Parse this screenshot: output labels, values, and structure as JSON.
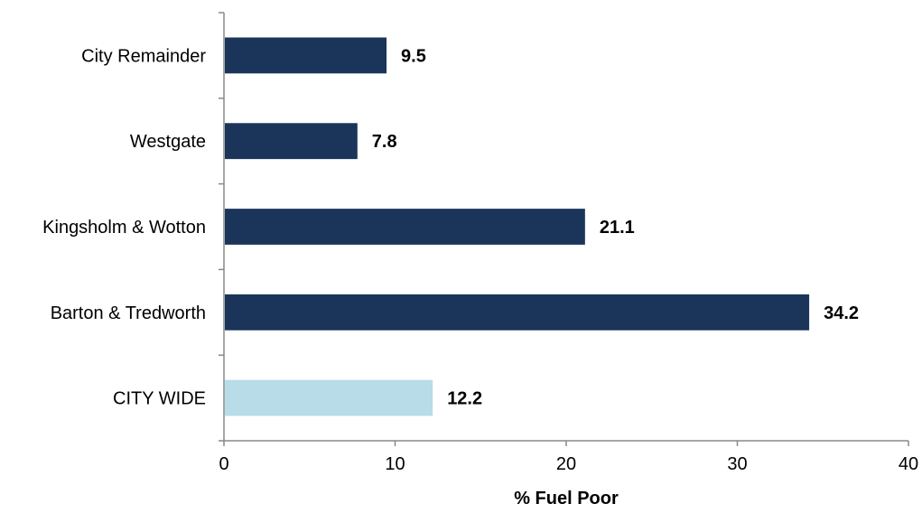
{
  "chart_data": {
    "type": "bar",
    "orientation": "horizontal",
    "categories": [
      "City Remainder",
      "Westgate",
      "Kingsholm & Wotton",
      "Barton & Tredworth",
      "CITY WIDE"
    ],
    "values": [
      9.5,
      7.8,
      21.1,
      34.2,
      12.2
    ],
    "value_labels": [
      "9.5",
      "7.8",
      "21.1",
      "34.2",
      "12.2"
    ],
    "bar_colors": [
      "#1b355a",
      "#1b355a",
      "#1b355a",
      "#1b355a",
      "#b8dce8"
    ],
    "xlabel": "% Fuel Poor",
    "ylabel": "",
    "xlim": [
      0,
      40
    ],
    "xticks": [
      0,
      10,
      20,
      30,
      40
    ],
    "grid": false,
    "legend": "none"
  }
}
